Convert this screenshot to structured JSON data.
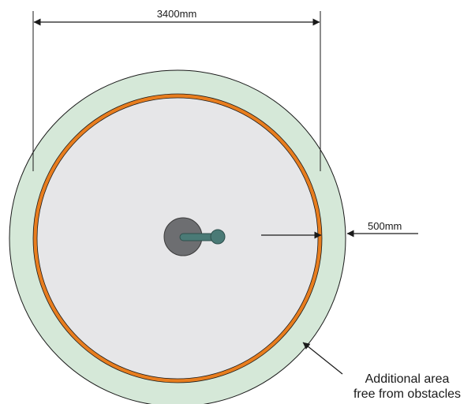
{
  "dimensions": {
    "diameter_label": "3400mm",
    "clearance_label": "500mm"
  },
  "annotation": {
    "line1": "Additional area",
    "line2": "free from obstacles"
  },
  "colors": {
    "clearance_zone": "#d5e8d8",
    "rim": "#e87d1e",
    "platform": "#e6e6e8",
    "hub": "#6d6e71",
    "arm": "#4a7a76",
    "line": "#1a1a1a"
  }
}
